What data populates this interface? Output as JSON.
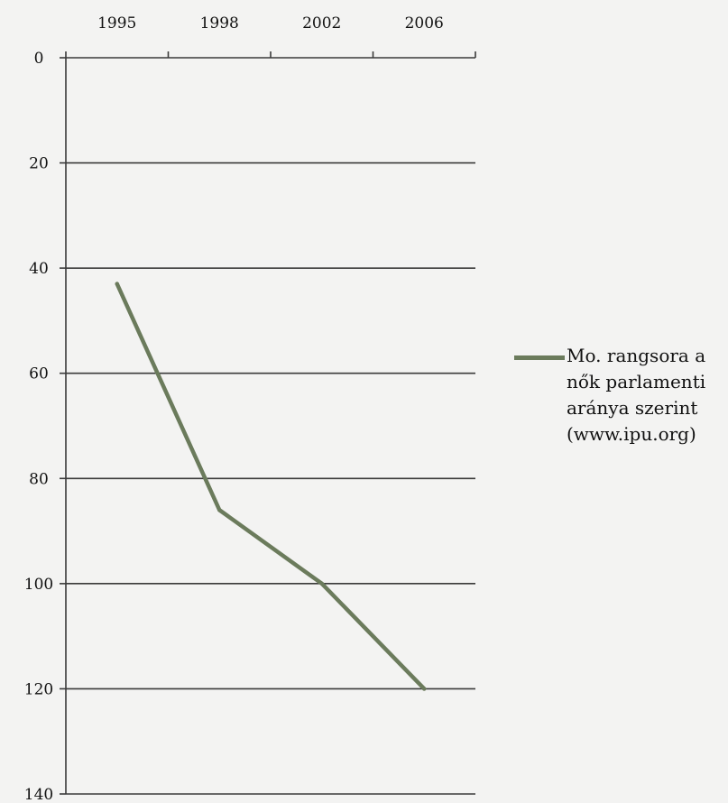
{
  "colors": {
    "background": "#f3f3f2",
    "series": "#6b7b5c",
    "grid": "#3a3a3a"
  },
  "chart_data": {
    "type": "line",
    "title": "",
    "xlabel": "",
    "ylabel": "",
    "x_axis_position": "top",
    "y_reversed": true,
    "ylim": [
      0,
      140
    ],
    "yticks": [
      "0",
      "20",
      "40",
      "60",
      "80",
      "100",
      "120",
      "140"
    ],
    "categories": [
      "1995",
      "1998",
      "2002",
      "2006"
    ],
    "grid": true,
    "legend_position": "right",
    "series": [
      {
        "name": "Mo. rangsora a nők parlamenti aránya szerint (www.ipu.org)",
        "values": [
          43,
          86,
          100,
          120
        ]
      }
    ]
  }
}
